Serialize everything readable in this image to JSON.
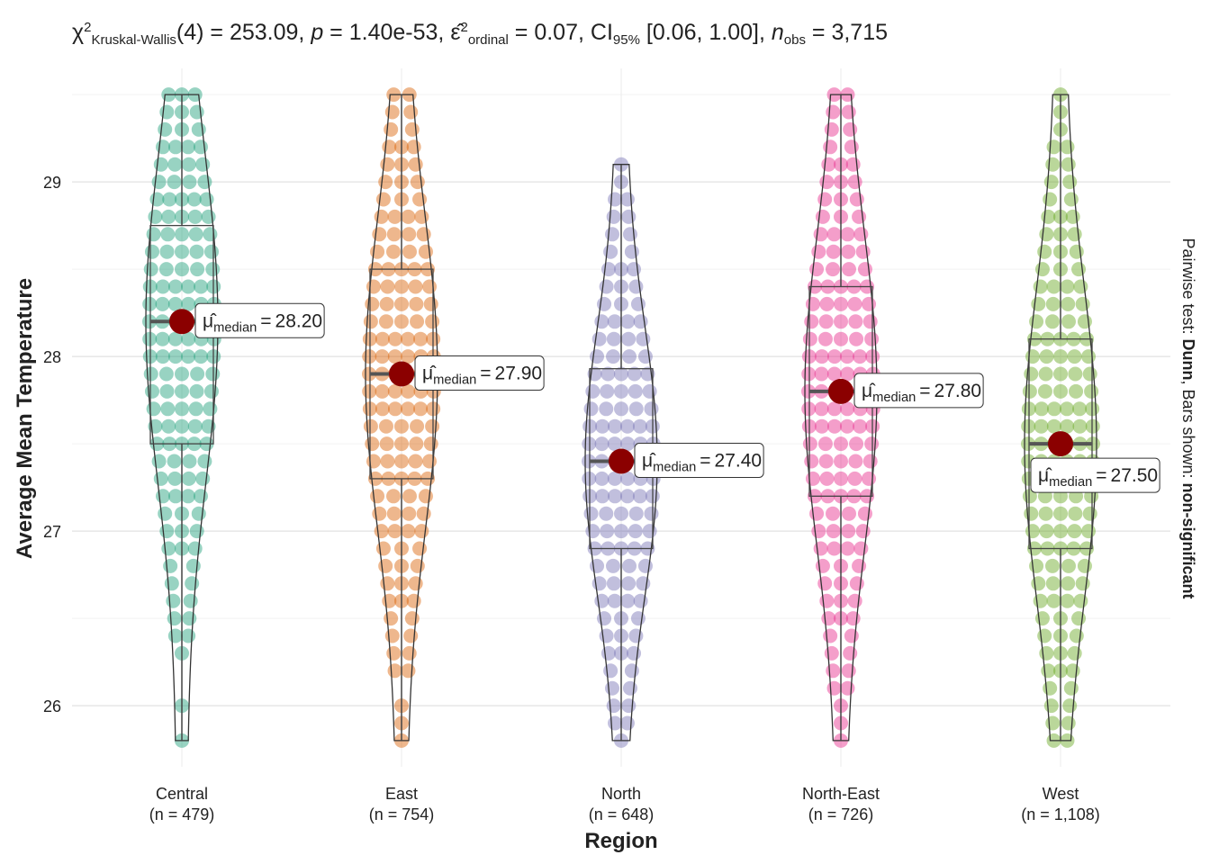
{
  "chart_data": {
    "type": "violin-box",
    "title": [
      {
        "text": "χ",
        "style": "normal"
      },
      {
        "text": "2",
        "style": "sup"
      },
      {
        "text": "Kruskal-Wallis",
        "style": "sub"
      },
      {
        "text": "(4) = 253.09, ",
        "style": "normal"
      },
      {
        "text": "p",
        "style": "italic"
      },
      {
        "text": " = 1.40e-53, ",
        "style": "normal"
      },
      {
        "text": "ε̂",
        "style": "normal"
      },
      {
        "text": "2",
        "style": "sup"
      },
      {
        "text": "ordinal",
        "style": "sub"
      },
      {
        "text": " = 0.07, CI",
        "style": "normal"
      },
      {
        "text": "95%",
        "style": "sub"
      },
      {
        "text": " [0.06, 1.00], ",
        "style": "normal"
      },
      {
        "text": "n",
        "style": "italic"
      },
      {
        "text": "obs",
        "style": "sub"
      },
      {
        "text": " = 3,715",
        "style": "normal"
      }
    ],
    "caption": [
      {
        "text": "Pairwise test: ",
        "style": "normal"
      },
      {
        "text": "Dunn",
        "style": "bold"
      },
      {
        "text": ", Bars shown: ",
        "style": "normal"
      },
      {
        "text": "non-significant",
        "style": "bold"
      }
    ],
    "x_label": "Region",
    "y_label": "Average Mean Temperature",
    "categories": [
      "Central",
      "East",
      "North",
      "North-East",
      "West"
    ],
    "n_labels": [
      "(n = 479)",
      "(n = 754)",
      "(n = 648)",
      "(n = 726)",
      "(n = 1,108)"
    ],
    "colors": [
      "#1b9e77",
      "#d95f02",
      "#7570b3",
      "#e7298a",
      "#66a61e"
    ],
    "median_symbol": "μ̂",
    "median_sub": "median",
    "median_eq": "=",
    "median_color": "#8b0000",
    "ylim": [
      25.65,
      29.65
    ],
    "yticks": [
      26,
      27,
      28,
      29
    ],
    "yminor": [
      26.5,
      27.5,
      28.5,
      29.5
    ],
    "grid": true,
    "series": [
      {
        "name": "Central",
        "whisker_low": 25.8,
        "q1": 27.5,
        "median": 28.2,
        "q3": 28.75,
        "whisker_high": 29.5,
        "median_label": "28.20",
        "points": [
          25.8,
          26.0,
          26.3,
          26.4,
          26.5,
          26.6,
          26.7,
          26.8,
          26.9,
          27.0,
          27.1,
          27.2,
          27.3,
          27.4,
          27.5,
          27.6,
          27.7,
          27.8,
          27.9,
          28.0,
          28.1,
          28.2,
          28.3,
          28.4,
          28.5,
          28.6,
          28.7,
          28.8,
          28.9,
          29.0,
          29.1,
          29.2,
          29.3,
          29.4,
          29.5
        ]
      },
      {
        "name": "East",
        "whisker_low": 25.8,
        "q1": 27.3,
        "median": 27.9,
        "q3": 28.5,
        "whisker_high": 29.5,
        "median_label": "27.90",
        "points": [
          25.8,
          25.9,
          26.0,
          26.2,
          26.3,
          26.4,
          26.5,
          26.6,
          26.7,
          26.8,
          26.9,
          27.0,
          27.1,
          27.2,
          27.3,
          27.4,
          27.5,
          27.6,
          27.7,
          27.8,
          27.9,
          28.0,
          28.1,
          28.2,
          28.3,
          28.4,
          28.5,
          28.6,
          28.7,
          28.8,
          28.9,
          29.0,
          29.1,
          29.2,
          29.3,
          29.4,
          29.5
        ]
      },
      {
        "name": "North",
        "whisker_low": 25.8,
        "q1": 26.9,
        "median": 27.4,
        "q3": 27.93,
        "whisker_high": 29.1,
        "median_label": "27.40",
        "points": [
          25.8,
          25.9,
          26.0,
          26.1,
          26.2,
          26.3,
          26.4,
          26.5,
          26.6,
          26.7,
          26.8,
          26.9,
          27.0,
          27.1,
          27.2,
          27.3,
          27.4,
          27.5,
          27.6,
          27.7,
          27.8,
          27.9,
          28.0,
          28.1,
          28.2,
          28.3,
          28.4,
          28.5,
          28.6,
          28.7,
          28.8,
          28.9,
          29.0,
          29.1
        ]
      },
      {
        "name": "North-East",
        "whisker_low": 25.8,
        "q1": 27.2,
        "median": 27.8,
        "q3": 28.4,
        "whisker_high": 29.5,
        "median_label": "27.80",
        "points": [
          25.8,
          25.9,
          26.0,
          26.1,
          26.2,
          26.3,
          26.4,
          26.5,
          26.6,
          26.7,
          26.8,
          26.9,
          27.0,
          27.1,
          27.2,
          27.3,
          27.4,
          27.5,
          27.6,
          27.7,
          27.8,
          27.9,
          28.0,
          28.1,
          28.2,
          28.3,
          28.4,
          28.5,
          28.6,
          28.7,
          28.8,
          28.9,
          29.0,
          29.1,
          29.2,
          29.3,
          29.4,
          29.5
        ]
      },
      {
        "name": "West",
        "whisker_low": 25.8,
        "q1": 26.9,
        "median": 27.5,
        "q3": 28.1,
        "whisker_high": 29.5,
        "median_label": "27.50",
        "points": [
          25.8,
          25.9,
          26.0,
          26.1,
          26.2,
          26.3,
          26.4,
          26.5,
          26.6,
          26.7,
          26.8,
          26.9,
          27.0,
          27.1,
          27.2,
          27.3,
          27.4,
          27.5,
          27.6,
          27.7,
          27.8,
          27.9,
          28.0,
          28.1,
          28.2,
          28.3,
          28.4,
          28.5,
          28.6,
          28.7,
          28.8,
          28.9,
          29.0,
          29.1,
          29.2,
          29.3,
          29.4,
          29.5
        ]
      }
    ]
  }
}
